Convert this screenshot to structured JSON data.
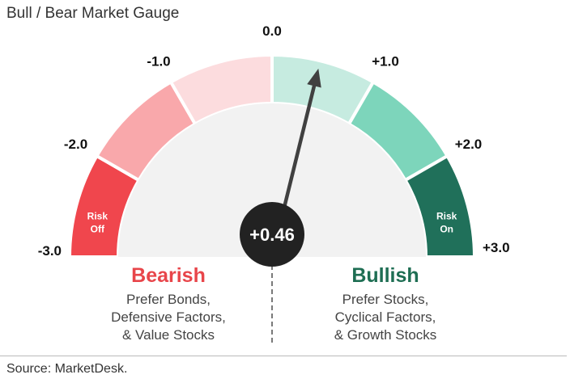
{
  "title": "Bull / Bear Market Gauge",
  "source": "Source: MarketDesk.",
  "chart_data": {
    "type": "gauge",
    "value": 0.46,
    "value_label": "+0.46",
    "range": [
      -3,
      3
    ],
    "ticks": [
      {
        "value": -3,
        "label": "-3.0"
      },
      {
        "value": -2,
        "label": "-2.0"
      },
      {
        "value": -1,
        "label": "-1.0"
      },
      {
        "value": 0,
        "label": "0.0"
      },
      {
        "value": 1,
        "label": "+1.0"
      },
      {
        "value": 2,
        "label": "+2.0"
      },
      {
        "value": 3,
        "label": "+3.0"
      }
    ],
    "bands": [
      {
        "from": -3,
        "to": -2,
        "color": "#f0464d"
      },
      {
        "from": -2,
        "to": -1,
        "color": "#f9a8ab"
      },
      {
        "from": -1,
        "to": 0,
        "color": "#fcdcde"
      },
      {
        "from": 0,
        "to": 1,
        "color": "#c6ebe0"
      },
      {
        "from": 1,
        "to": 2,
        "color": "#7dd5bb"
      },
      {
        "from": 2,
        "to": 3,
        "color": "#20705a"
      }
    ],
    "risk_off": [
      "Risk",
      "Off"
    ],
    "risk_on": [
      "Risk",
      "On"
    ]
  },
  "bearish": {
    "heading": "Bearish",
    "lines": [
      "Prefer Bonds,",
      "Defensive Factors,",
      "& Value Stocks"
    ]
  },
  "bullish": {
    "heading": "Bullish",
    "lines": [
      "Prefer Stocks,",
      "Cyclical Factors,",
      "& Growth Stocks"
    ]
  },
  "colors": {
    "bearish": "#e8454a",
    "bullish": "#1e6e53",
    "needle": "#404040",
    "hub": "#222222",
    "inner": "#f2f2f2"
  }
}
